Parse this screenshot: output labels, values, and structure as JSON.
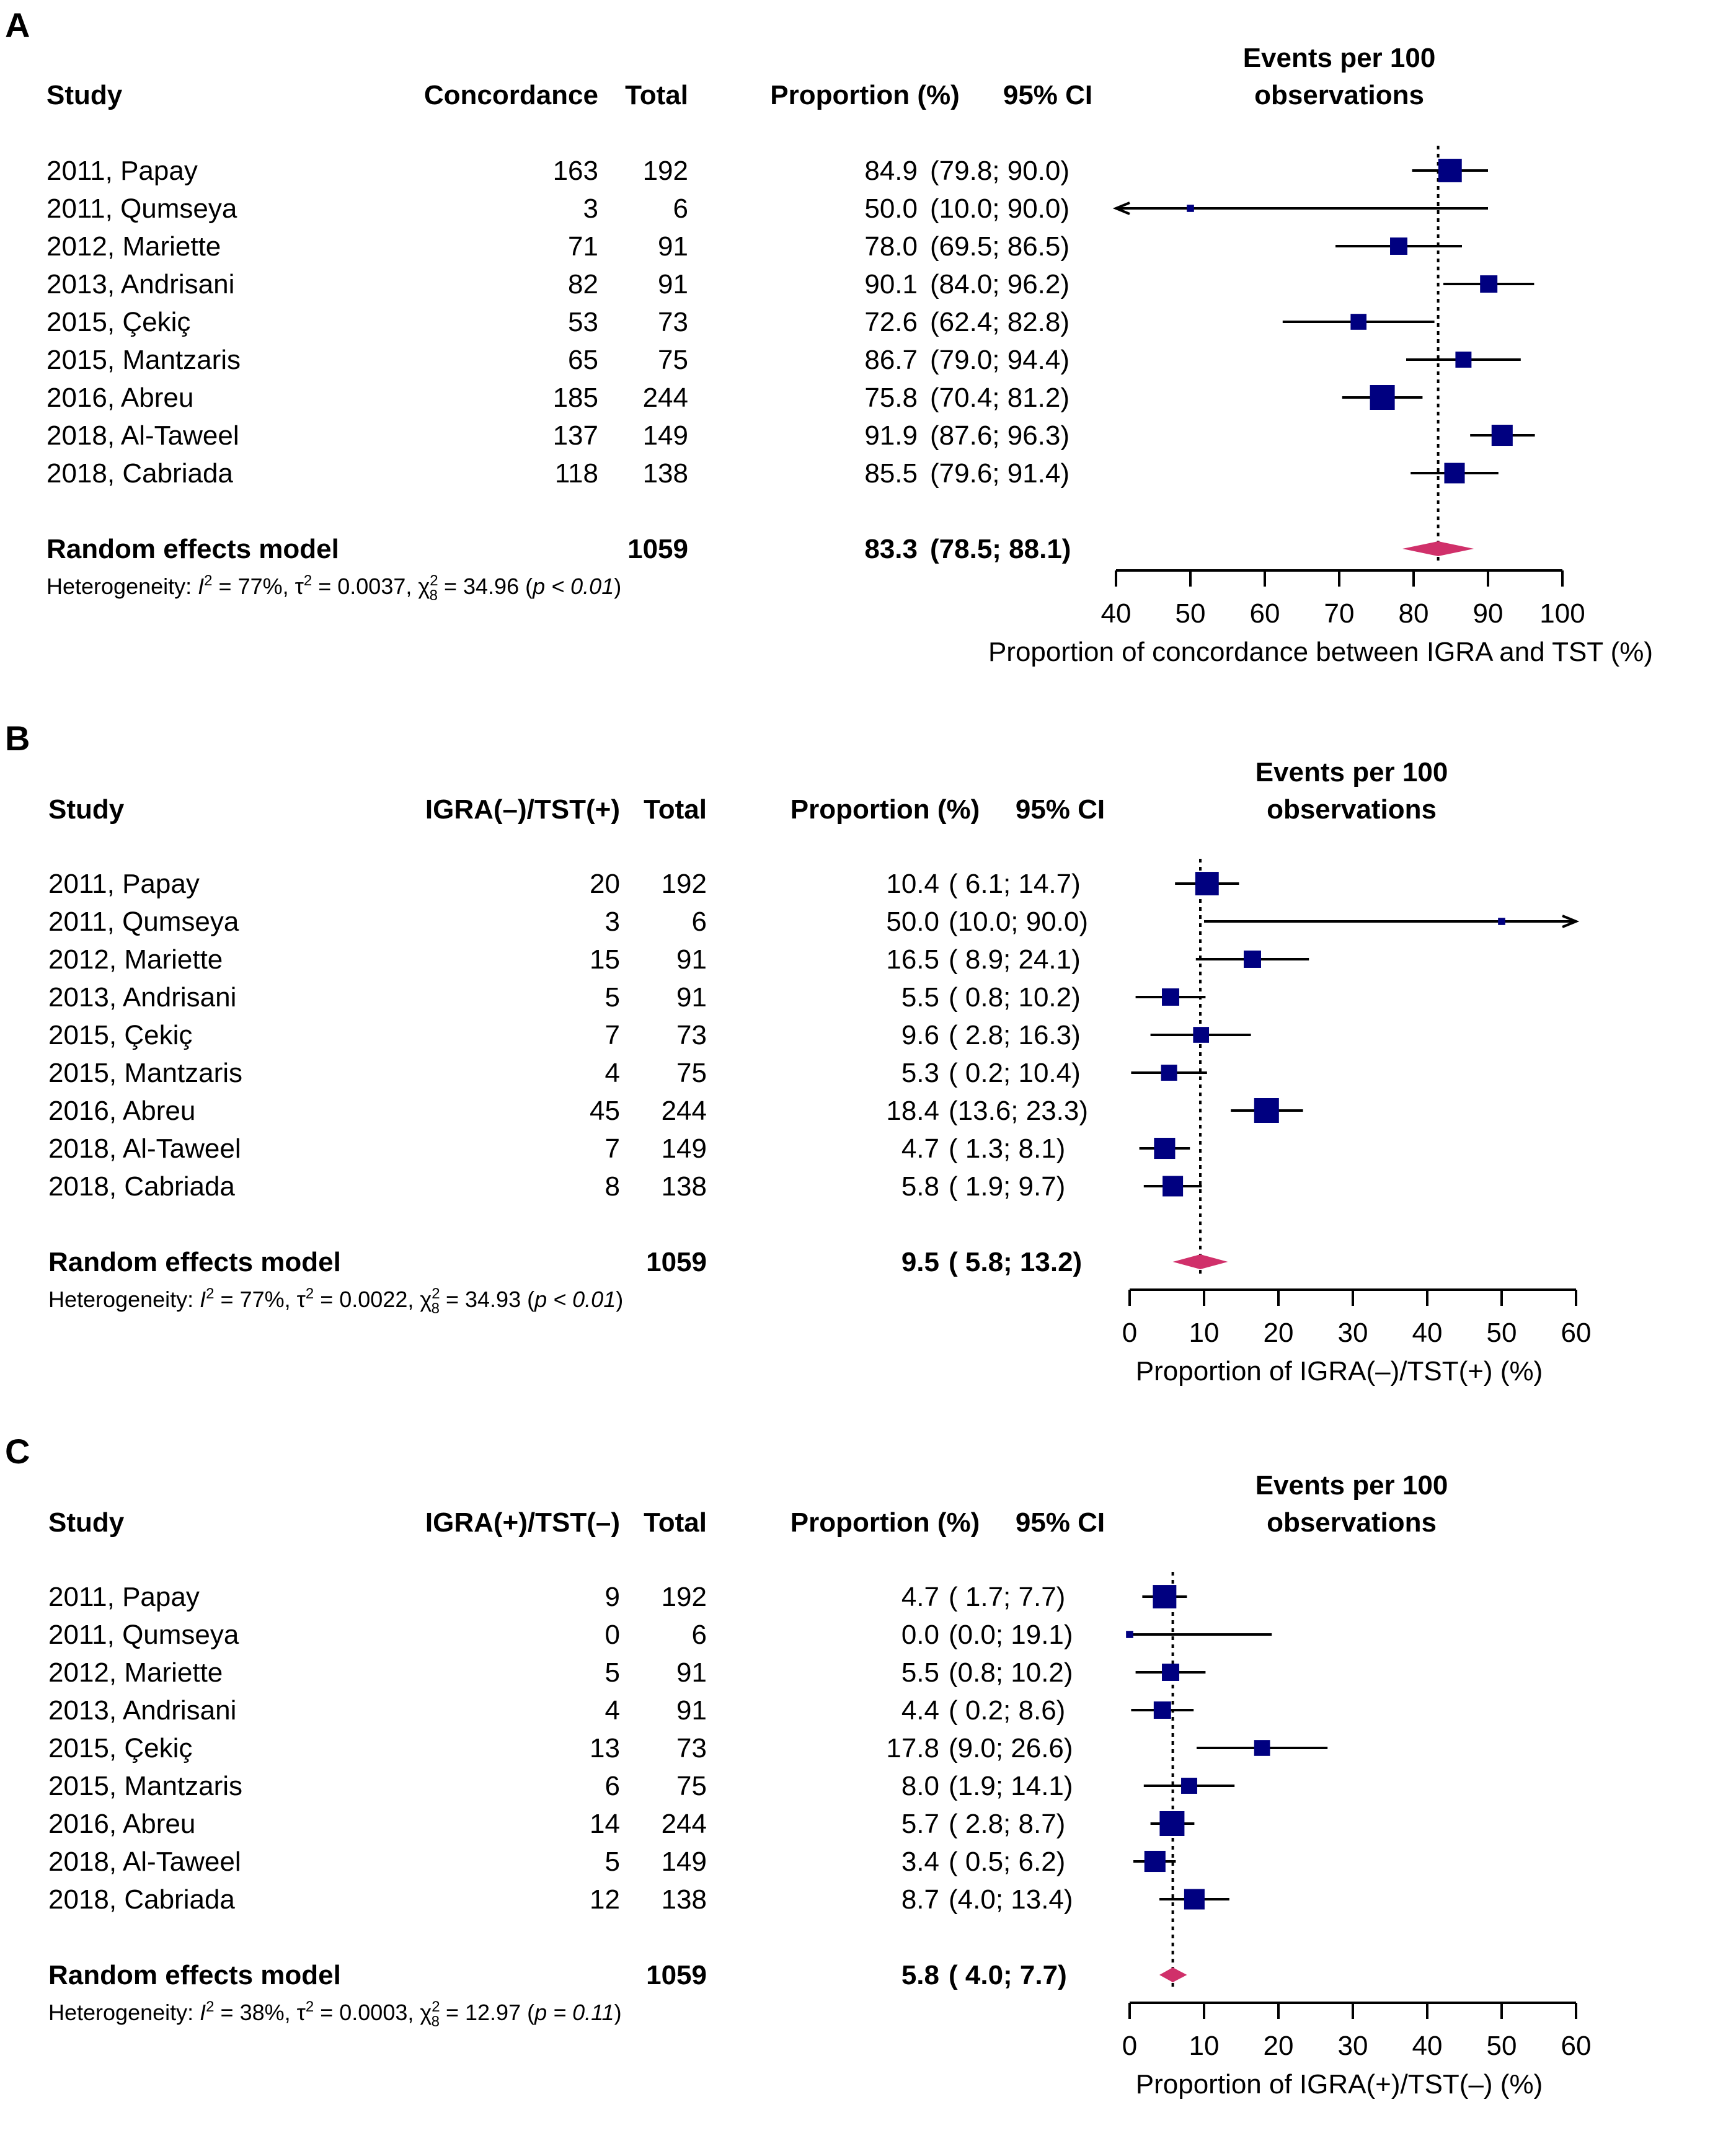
{
  "chart_data": [
    {
      "type": "forest",
      "panel_label": "A",
      "headers": {
        "study": "Study",
        "count": "Concordance",
        "total": "Total",
        "proportion": "Proportion (%)",
        "ci": "95% CI",
        "events_line1": "Events per 100",
        "events_line2": "observations"
      },
      "studies": [
        {
          "study": "2011, Papay",
          "count": "163",
          "total": "192",
          "prop": "84.9",
          "ci_text": "(79.8; 90.0)",
          "estimate": 84.9,
          "lower": 79.8,
          "upper": 90.0
        },
        {
          "study": "2011, Qumseya",
          "count": "3",
          "total": "6",
          "prop": "50.0",
          "ci_text": "(10.0; 90.0)",
          "estimate": 50.0,
          "lower": 10.0,
          "upper": 90.0
        },
        {
          "study": "2012, Mariette",
          "count": "71",
          "total": "91",
          "prop": "78.0",
          "ci_text": "(69.5; 86.5)",
          "estimate": 78.0,
          "lower": 69.5,
          "upper": 86.5
        },
        {
          "study": "2013, Andrisani",
          "count": "82",
          "total": "91",
          "prop": "90.1",
          "ci_text": "(84.0; 96.2)",
          "estimate": 90.1,
          "lower": 84.0,
          "upper": 96.2
        },
        {
          "study": "2015, Çekiç",
          "count": "53",
          "total": "73",
          "prop": "72.6",
          "ci_text": "(62.4; 82.8)",
          "estimate": 72.6,
          "lower": 62.4,
          "upper": 82.8
        },
        {
          "study": "2015, Mantzaris",
          "count": "65",
          "total": "75",
          "prop": "86.7",
          "ci_text": "(79.0; 94.4)",
          "estimate": 86.7,
          "lower": 79.0,
          "upper": 94.4
        },
        {
          "study": "2016, Abreu",
          "count": "185",
          "total": "244",
          "prop": "75.8",
          "ci_text": "(70.4; 81.2)",
          "estimate": 75.8,
          "lower": 70.4,
          "upper": 81.2
        },
        {
          "study": "2018, Al-Taweel",
          "count": "137",
          "total": "149",
          "prop": "91.9",
          "ci_text": "(87.6; 96.3)",
          "estimate": 91.9,
          "lower": 87.6,
          "upper": 96.3
        },
        {
          "study": "2018, Cabriada",
          "count": "118",
          "total": "138",
          "prop": "85.5",
          "ci_text": "(79.6; 91.4)",
          "estimate": 85.5,
          "lower": 79.6,
          "upper": 91.4
        }
      ],
      "pooled": {
        "label": "Random effects model",
        "total": "1059",
        "prop": "83.3",
        "ci_text": "(78.5; 88.1)",
        "estimate": 83.3,
        "lower": 78.5,
        "upper": 88.1
      },
      "heterogeneity": {
        "I2": "77%",
        "tau2": "0.0037",
        "chi2": "34.96",
        "df": "8",
        "p": "p < 0.01"
      },
      "xlim": [
        40,
        100
      ],
      "ticks": [
        40,
        50,
        60,
        70,
        80,
        90,
        100
      ],
      "xlabel": "Proportion of concordance between IGRA and TST (%)"
    },
    {
      "type": "forest",
      "panel_label": "B",
      "headers": {
        "study": "Study",
        "count": "IGRA(–)/TST(+)",
        "total": "Total",
        "proportion": "Proportion (%)",
        "ci": "95% CI",
        "events_line1": "Events per 100",
        "events_line2": "observations"
      },
      "studies": [
        {
          "study": "2011, Papay",
          "count": "20",
          "total": "192",
          "prop": "10.4",
          "ci_text": "( 6.1; 14.7)",
          "estimate": 10.4,
          "lower": 6.1,
          "upper": 14.7
        },
        {
          "study": "2011, Qumseya",
          "count": "3",
          "total": "6",
          "prop": "50.0",
          "ci_text": "(10.0; 90.0)",
          "estimate": 50.0,
          "lower": 10.0,
          "upper": 90.0
        },
        {
          "study": "2012, Mariette",
          "count": "15",
          "total": "91",
          "prop": "16.5",
          "ci_text": "( 8.9; 24.1)",
          "estimate": 16.5,
          "lower": 8.9,
          "upper": 24.1
        },
        {
          "study": "2013, Andrisani",
          "count": "5",
          "total": "91",
          "prop": "5.5",
          "ci_text": "( 0.8; 10.2)",
          "estimate": 5.5,
          "lower": 0.8,
          "upper": 10.2
        },
        {
          "study": "2015, Çekiç",
          "count": "7",
          "total": "73",
          "prop": "9.6",
          "ci_text": "( 2.8; 16.3)",
          "estimate": 9.6,
          "lower": 2.8,
          "upper": 16.3
        },
        {
          "study": "2015, Mantzaris",
          "count": "4",
          "total": "75",
          "prop": "5.3",
          "ci_text": "( 0.2; 10.4)",
          "estimate": 5.3,
          "lower": 0.2,
          "upper": 10.4
        },
        {
          "study": "2016, Abreu",
          "count": "45",
          "total": "244",
          "prop": "18.4",
          "ci_text": "(13.6; 23.3)",
          "estimate": 18.4,
          "lower": 13.6,
          "upper": 23.3
        },
        {
          "study": "2018, Al-Taweel",
          "count": "7",
          "total": "149",
          "prop": "4.7",
          "ci_text": "( 1.3; 8.1)",
          "estimate": 4.7,
          "lower": 1.3,
          "upper": 8.1
        },
        {
          "study": "2018, Cabriada",
          "count": "8",
          "total": "138",
          "prop": "5.8",
          "ci_text": "( 1.9; 9.7)",
          "estimate": 5.8,
          "lower": 1.9,
          "upper": 9.7
        }
      ],
      "pooled": {
        "label": "Random effects model",
        "total": "1059",
        "prop": "9.5",
        "ci_text": "( 5.8; 13.2)",
        "estimate": 9.5,
        "lower": 5.8,
        "upper": 13.2
      },
      "heterogeneity": {
        "I2": "77%",
        "tau2": "0.0022",
        "chi2": "34.93",
        "df": "8",
        "p": "p < 0.01"
      },
      "xlim": [
        0,
        60
      ],
      "ticks": [
        0,
        10,
        20,
        30,
        40,
        50,
        60
      ],
      "xlabel": "Proportion of IGRA(–)/TST(+) (%)"
    },
    {
      "type": "forest",
      "panel_label": "C",
      "headers": {
        "study": "Study",
        "count": "IGRA(+)/TST(–)",
        "total": "Total",
        "proportion": "Proportion (%)",
        "ci": "95% CI",
        "events_line1": "Events per 100",
        "events_line2": "observations"
      },
      "studies": [
        {
          "study": "2011, Papay",
          "count": "9",
          "total": "192",
          "prop": "4.7",
          "ci_text": "( 1.7; 7.7)",
          "estimate": 4.7,
          "lower": 1.7,
          "upper": 7.7
        },
        {
          "study": "2011, Qumseya",
          "count": "0",
          "total": "6",
          "prop": "0.0",
          "ci_text": "(0.0; 19.1)",
          "estimate": 0.0,
          "lower": 0.0,
          "upper": 19.1
        },
        {
          "study": "2012, Mariette",
          "count": "5",
          "total": "91",
          "prop": "5.5",
          "ci_text": "(0.8; 10.2)",
          "estimate": 5.5,
          "lower": 0.8,
          "upper": 10.2
        },
        {
          "study": "2013, Andrisani",
          "count": "4",
          "total": "91",
          "prop": "4.4",
          "ci_text": "( 0.2; 8.6)",
          "estimate": 4.4,
          "lower": 0.2,
          "upper": 8.6
        },
        {
          "study": "2015, Çekiç",
          "count": "13",
          "total": "73",
          "prop": "17.8",
          "ci_text": "(9.0; 26.6)",
          "estimate": 17.8,
          "lower": 9.0,
          "upper": 26.6
        },
        {
          "study": "2015, Mantzaris",
          "count": "6",
          "total": "75",
          "prop": "8.0",
          "ci_text": "(1.9; 14.1)",
          "estimate": 8.0,
          "lower": 1.9,
          "upper": 14.1
        },
        {
          "study": "2016, Abreu",
          "count": "14",
          "total": "244",
          "prop": "5.7",
          "ci_text": "( 2.8; 8.7)",
          "estimate": 5.7,
          "lower": 2.8,
          "upper": 8.7
        },
        {
          "study": "2018, Al-Taweel",
          "count": "5",
          "total": "149",
          "prop": "3.4",
          "ci_text": "( 0.5; 6.2)",
          "estimate": 3.4,
          "lower": 0.5,
          "upper": 6.2
        },
        {
          "study": "2018, Cabriada",
          "count": "12",
          "total": "138",
          "prop": "8.7",
          "ci_text": "(4.0; 13.4)",
          "estimate": 8.7,
          "lower": 4.0,
          "upper": 13.4
        }
      ],
      "pooled": {
        "label": "Random effects model",
        "total": "1059",
        "prop": "5.8",
        "ci_text": "( 4.0; 7.7)",
        "estimate": 5.8,
        "lower": 4.0,
        "upper": 7.7
      },
      "heterogeneity": {
        "I2": "38%",
        "tau2": "0.0003",
        "chi2": "12.97",
        "df": "8",
        "p": "p = 0.11"
      },
      "xlim": [
        0,
        60
      ],
      "ticks": [
        0,
        10,
        20,
        30,
        40,
        50,
        60
      ],
      "xlabel": "Proportion of IGRA(+)/TST(–) (%)"
    }
  ],
  "colors": {
    "marker": "#000080",
    "diamond": "#d0306a",
    "line": "#000000"
  }
}
